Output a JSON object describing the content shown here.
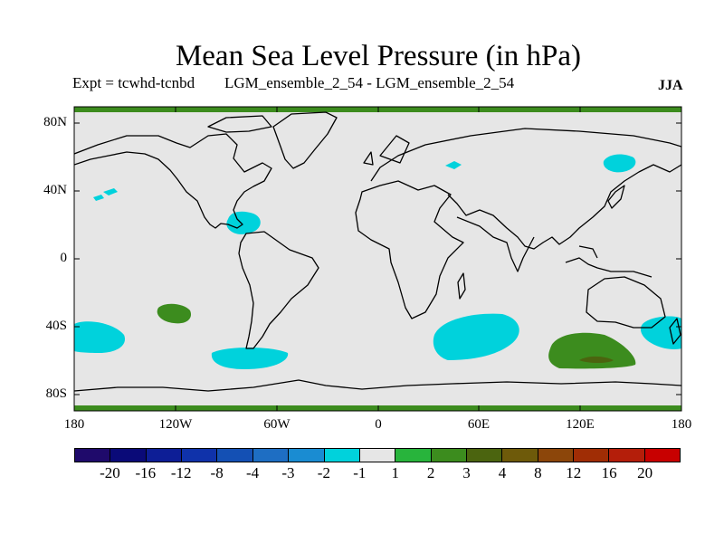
{
  "title": "Mean Sea Level Pressure (in hPa)",
  "expt_label": "Expt = tcwhd-tcnbd",
  "ensemble_label": "LGM_ensemble_2_54 - LGM_ensemble_2_54",
  "season": "JJA",
  "map": {
    "background_color": "#e6e6e6",
    "y_axis_labels": [
      "80N",
      "40N",
      "0",
      "40S",
      "80S"
    ],
    "x_axis_labels": [
      "180",
      "120W",
      "60W",
      "0",
      "60E",
      "120E",
      "180"
    ],
    "anomaly_regions": [
      {
        "name": "north-polar-band",
        "category": "2"
      },
      {
        "name": "south-polar-band",
        "category": "2"
      },
      {
        "name": "gulf-of-mexico",
        "category": "-1"
      },
      {
        "name": "north-pacific-small-1",
        "category": "-1"
      },
      {
        "name": "north-pacific-small-2",
        "category": "-1"
      },
      {
        "name": "north-atlantic-small",
        "category": "-1"
      },
      {
        "name": "kamchatka",
        "category": "-1"
      },
      {
        "name": "south-pacific-west",
        "category": "-1"
      },
      {
        "name": "south-pacific-positive",
        "category": "2"
      },
      {
        "name": "drake-passage",
        "category": "-1"
      },
      {
        "name": "south-indian-ocean-west",
        "category": "-1"
      },
      {
        "name": "south-of-australia",
        "category": "2"
      },
      {
        "name": "south-of-australia-core",
        "category": "3"
      },
      {
        "name": "tasman-sea",
        "category": "-1"
      }
    ]
  },
  "colorbar": {
    "labels": [
      "-20",
      "-16",
      "-12",
      "-8",
      "-4",
      "-3",
      "-2",
      "-1",
      "1",
      "2",
      "3",
      "4",
      "8",
      "12",
      "16",
      "20"
    ],
    "colors": [
      "#1f0a6b",
      "#0a0a78",
      "#0d1e96",
      "#0f32aa",
      "#1450b4",
      "#1e6ec3",
      "#1a8cd2",
      "#00d2dc",
      "#e6e6e6",
      "#28b43c",
      "#3c8c1e",
      "#4b640f",
      "#6e5a0a",
      "#8c460a",
      "#a02d05",
      "#b41e0a",
      "#c80000"
    ]
  }
}
